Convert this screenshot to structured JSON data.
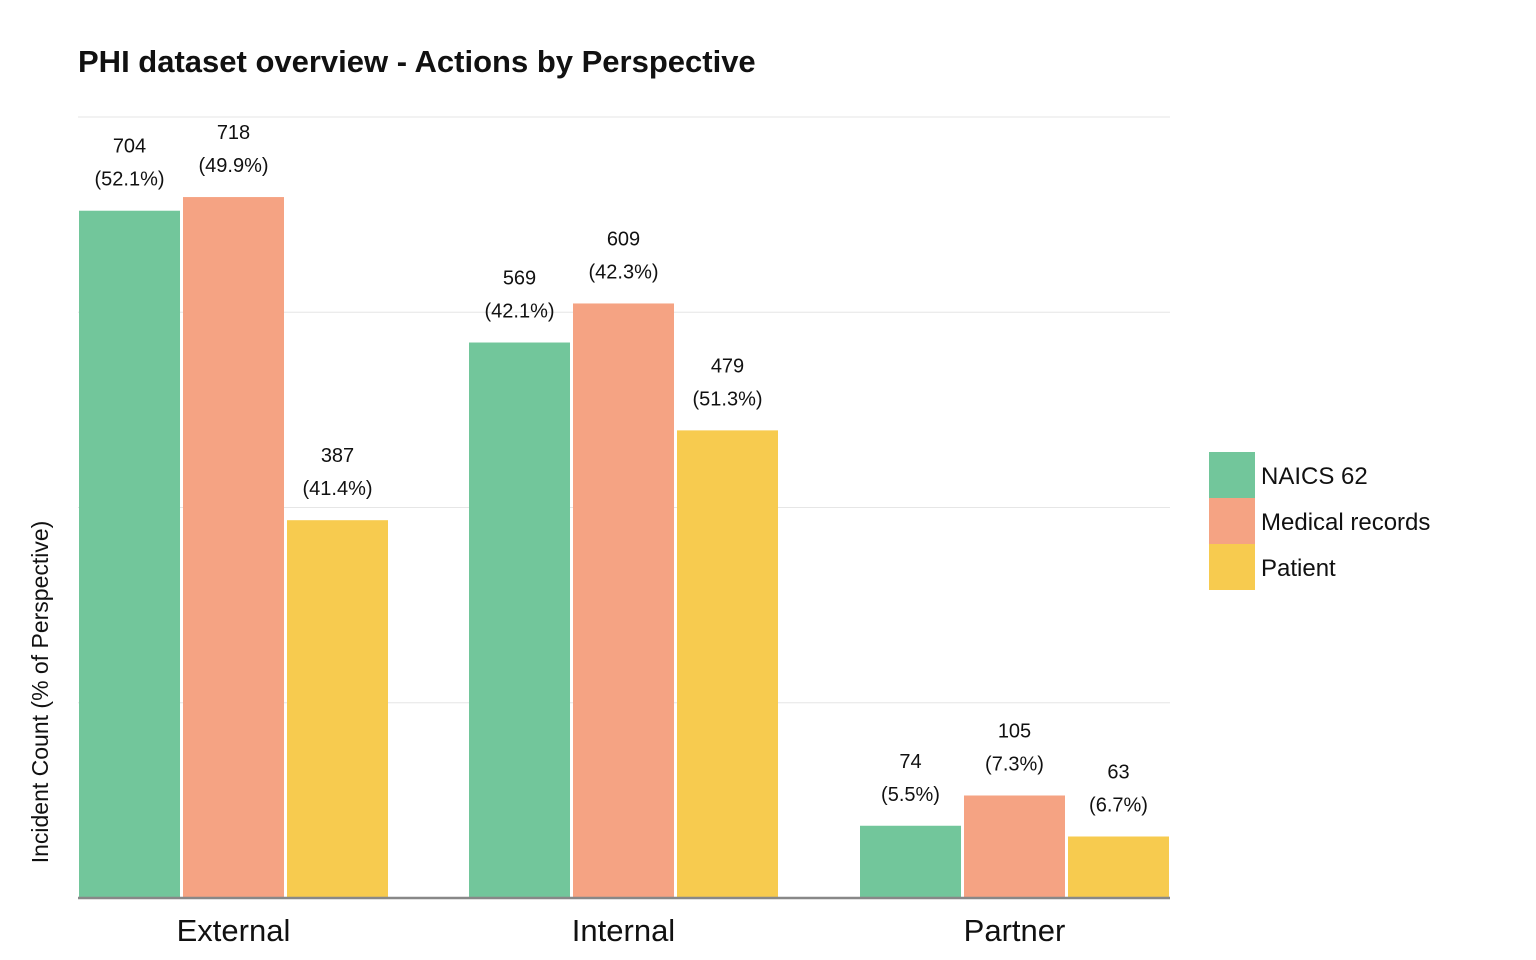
{
  "chart_data": {
    "type": "bar",
    "title": "PHI dataset overview - Actions by Perspective",
    "xlabel": "",
    "ylabel": "Incident Count (% of Perspective)",
    "categories": [
      "External",
      "Internal",
      "Partner"
    ],
    "series": [
      {
        "name": "NAICS 62",
        "color": "#72C69B",
        "values": [
          704,
          569,
          74
        ],
        "labels": [
          "(52.1%)",
          "(42.1%)",
          "(5.5%)"
        ]
      },
      {
        "name": "Medical records",
        "color": "#F5A383",
        "values": [
          718,
          609,
          105
        ],
        "labels": [
          "(49.9%)",
          "(42.3%)",
          "(7.3%)"
        ]
      },
      {
        "name": "Patient",
        "color": "#F7CB4F",
        "values": [
          387,
          479,
          63
        ],
        "labels": [
          "(41.4%)",
          "(51.3%)",
          "(6.7%)"
        ]
      }
    ],
    "ylim": [
      0,
      800
    ],
    "grid": true,
    "legend": "right"
  }
}
